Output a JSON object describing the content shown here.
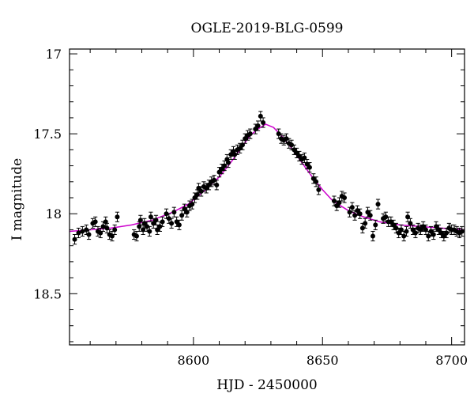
{
  "chart_data": {
    "type": "scatter",
    "title": "OGLE-2019-BLG-0599",
    "xlabel": "HJD - 2450000",
    "ylabel": "I magnitude",
    "xlim": [
      8552,
      8705
    ],
    "ylim": [
      18.82,
      16.97
    ],
    "y_inverted": true,
    "x_ticks_major": [
      8600,
      8650,
      8700
    ],
    "x_tick_labels": [
      "8600",
      "8650",
      "8700"
    ],
    "y_ticks_major": [
      17,
      17.5,
      18,
      18.5
    ],
    "y_tick_labels": [
      "17",
      "17.5",
      "18",
      "18.5"
    ],
    "grid": false,
    "colors": {
      "points": "#000000",
      "model": "#cc00cc",
      "axes": "#000000"
    },
    "series": [
      {
        "type": "scatter_with_errorbars",
        "points": [
          [
            8554.0,
            18.16,
            0.03
          ],
          [
            8555.5,
            18.12,
            0.03
          ],
          [
            8557.0,
            18.11,
            0.03
          ],
          [
            8558.5,
            18.1,
            0.03
          ],
          [
            8559.5,
            18.13,
            0.03
          ],
          [
            8561.0,
            18.06,
            0.03
          ],
          [
            8562.0,
            18.05,
            0.03
          ],
          [
            8563.0,
            18.11,
            0.03
          ],
          [
            8564.0,
            18.12,
            0.03
          ],
          [
            8565.0,
            18.08,
            0.03
          ],
          [
            8566.0,
            18.05,
            0.03
          ],
          [
            8566.5,
            18.09,
            0.03
          ],
          [
            8567.5,
            18.13,
            0.03
          ],
          [
            8568.5,
            18.14,
            0.03
          ],
          [
            8569.5,
            18.1,
            0.03
          ],
          [
            8570.5,
            18.02,
            0.03
          ],
          [
            8577.0,
            18.13,
            0.03
          ],
          [
            8578.0,
            18.14,
            0.03
          ],
          [
            8579.0,
            18.08,
            0.03
          ],
          [
            8579.5,
            18.04,
            0.03
          ],
          [
            8580.5,
            18.1,
            0.03
          ],
          [
            8581.0,
            18.06,
            0.03
          ],
          [
            8582.0,
            18.08,
            0.03
          ],
          [
            8583.0,
            18.11,
            0.03
          ],
          [
            8583.5,
            18.02,
            0.03
          ],
          [
            8584.5,
            18.06,
            0.03
          ],
          [
            8585.5,
            18.04,
            0.03
          ],
          [
            8586.0,
            18.1,
            0.03
          ],
          [
            8587.0,
            18.08,
            0.03
          ],
          [
            8588.0,
            18.05,
            0.03
          ],
          [
            8589.5,
            18.0,
            0.03
          ],
          [
            8590.5,
            18.03,
            0.03
          ],
          [
            8591.5,
            18.06,
            0.03
          ],
          [
            8592.5,
            17.99,
            0.03
          ],
          [
            8593.5,
            18.05,
            0.03
          ],
          [
            8594.5,
            18.07,
            0.03
          ],
          [
            8595.5,
            18.01,
            0.03
          ],
          [
            8596.5,
            17.97,
            0.03
          ],
          [
            8597.5,
            17.99,
            0.03
          ],
          [
            8598.5,
            17.95,
            0.03
          ],
          [
            8599.5,
            17.94,
            0.03
          ],
          [
            8600.5,
            17.9,
            0.03
          ],
          [
            8601.5,
            17.88,
            0.03
          ],
          [
            8602.0,
            17.84,
            0.03
          ],
          [
            8603.0,
            17.86,
            0.03
          ],
          [
            8604.0,
            17.83,
            0.03
          ],
          [
            8605.0,
            17.84,
            0.03
          ],
          [
            8606.0,
            17.82,
            0.03
          ],
          [
            8607.0,
            17.8,
            0.03
          ],
          [
            8608.0,
            17.79,
            0.03
          ],
          [
            8609.0,
            17.82,
            0.03
          ],
          [
            8610.0,
            17.74,
            0.03
          ],
          [
            8611.0,
            17.72,
            0.03
          ],
          [
            8612.0,
            17.7,
            0.03
          ],
          [
            8613.0,
            17.66,
            0.03
          ],
          [
            8613.5,
            17.68,
            0.03
          ],
          [
            8614.5,
            17.63,
            0.03
          ],
          [
            8615.5,
            17.61,
            0.03
          ],
          [
            8616.0,
            17.63,
            0.03
          ],
          [
            8617.0,
            17.6,
            0.03
          ],
          [
            8618.0,
            17.59,
            0.03
          ],
          [
            8619.0,
            17.57,
            0.03
          ],
          [
            8620.0,
            17.53,
            0.03
          ],
          [
            8621.0,
            17.51,
            0.03
          ],
          [
            8622.0,
            17.5,
            0.03
          ],
          [
            8624.0,
            17.47,
            0.03
          ],
          [
            8625.0,
            17.45,
            0.03
          ],
          [
            8626.0,
            17.39,
            0.03
          ],
          [
            8627.0,
            17.43,
            0.03
          ],
          [
            8633.0,
            17.5,
            0.03
          ],
          [
            8634.0,
            17.53,
            0.03
          ],
          [
            8635.0,
            17.54,
            0.03
          ],
          [
            8636.0,
            17.53,
            0.03
          ],
          [
            8637.0,
            17.56,
            0.03
          ],
          [
            8638.0,
            17.57,
            0.03
          ],
          [
            8639.0,
            17.6,
            0.03
          ],
          [
            8640.0,
            17.62,
            0.03
          ],
          [
            8641.0,
            17.64,
            0.03
          ],
          [
            8642.0,
            17.66,
            0.03
          ],
          [
            8643.0,
            17.65,
            0.03
          ],
          [
            8644.0,
            17.69,
            0.03
          ],
          [
            8645.0,
            17.71,
            0.03
          ],
          [
            8646.5,
            17.78,
            0.03
          ],
          [
            8647.5,
            17.8,
            0.03
          ],
          [
            8648.5,
            17.85,
            0.03
          ],
          [
            8654.5,
            17.92,
            0.03
          ],
          [
            8655.5,
            17.95,
            0.03
          ],
          [
            8656.5,
            17.93,
            0.03
          ],
          [
            8657.5,
            17.89,
            0.03
          ],
          [
            8658.5,
            17.9,
            0.03
          ],
          [
            8660.5,
            17.99,
            0.03
          ],
          [
            8661.5,
            17.96,
            0.03
          ],
          [
            8662.5,
            18.01,
            0.03
          ],
          [
            8663.5,
            17.98,
            0.03
          ],
          [
            8664.5,
            18.0,
            0.03
          ],
          [
            8665.5,
            18.09,
            0.03
          ],
          [
            8666.5,
            18.06,
            0.03
          ],
          [
            8667.5,
            17.99,
            0.03
          ],
          [
            8668.5,
            18.01,
            0.03
          ],
          [
            8669.5,
            18.14,
            0.03
          ],
          [
            8670.5,
            18.07,
            0.03
          ],
          [
            8671.5,
            17.94,
            0.03
          ],
          [
            8673.5,
            18.03,
            0.03
          ],
          [
            8674.5,
            18.02,
            0.03
          ],
          [
            8675.5,
            18.05,
            0.03
          ],
          [
            8676.5,
            18.05,
            0.03
          ],
          [
            8677.5,
            18.07,
            0.03
          ],
          [
            8678.5,
            18.09,
            0.03
          ],
          [
            8679.5,
            18.12,
            0.03
          ],
          [
            8680.5,
            18.1,
            0.03
          ],
          [
            8681.5,
            18.14,
            0.03
          ],
          [
            8682.5,
            18.11,
            0.03
          ],
          [
            8683.0,
            18.02,
            0.03
          ],
          [
            8684.0,
            18.06,
            0.03
          ],
          [
            8685.0,
            18.1,
            0.03
          ],
          [
            8686.0,
            18.12,
            0.03
          ],
          [
            8687.0,
            18.09,
            0.03
          ],
          [
            8688.0,
            18.1,
            0.03
          ],
          [
            8689.0,
            18.08,
            0.03
          ],
          [
            8690.0,
            18.1,
            0.03
          ],
          [
            8691.0,
            18.14,
            0.03
          ],
          [
            8692.0,
            18.11,
            0.03
          ],
          [
            8693.0,
            18.13,
            0.03
          ],
          [
            8694.0,
            18.08,
            0.03
          ],
          [
            8695.0,
            18.1,
            0.03
          ],
          [
            8696.0,
            18.12,
            0.03
          ],
          [
            8697.0,
            18.14,
            0.03
          ],
          [
            8698.0,
            18.12,
            0.03
          ],
          [
            8699.0,
            18.09,
            0.03
          ],
          [
            8700.0,
            18.1,
            0.03
          ],
          [
            8701.0,
            18.1,
            0.03
          ],
          [
            8702.0,
            18.11,
            0.03
          ],
          [
            8703.0,
            18.12,
            0.03
          ],
          [
            8704.0,
            18.11,
            0.03
          ]
        ]
      },
      {
        "type": "model_curve",
        "points": [
          [
            8552,
            18.11
          ],
          [
            8560,
            18.1
          ],
          [
            8568,
            18.09
          ],
          [
            8576,
            18.07
          ],
          [
            8584,
            18.04
          ],
          [
            8592,
            17.99
          ],
          [
            8598,
            17.94
          ],
          [
            8604,
            17.86
          ],
          [
            8610,
            17.77
          ],
          [
            8614,
            17.69
          ],
          [
            8618,
            17.6
          ],
          [
            8622,
            17.51
          ],
          [
            8625,
            17.47
          ],
          [
            8628,
            17.44
          ],
          [
            8631,
            17.46
          ],
          [
            8634,
            17.51
          ],
          [
            8638,
            17.59
          ],
          [
            8642,
            17.68
          ],
          [
            8646,
            17.77
          ],
          [
            8650,
            17.85
          ],
          [
            8654,
            17.92
          ],
          [
            8660,
            17.98
          ],
          [
            8666,
            18.02
          ],
          [
            8672,
            18.05
          ],
          [
            8680,
            18.07
          ],
          [
            8688,
            18.08
          ],
          [
            8696,
            18.09
          ],
          [
            8705,
            18.1
          ]
        ]
      }
    ]
  }
}
